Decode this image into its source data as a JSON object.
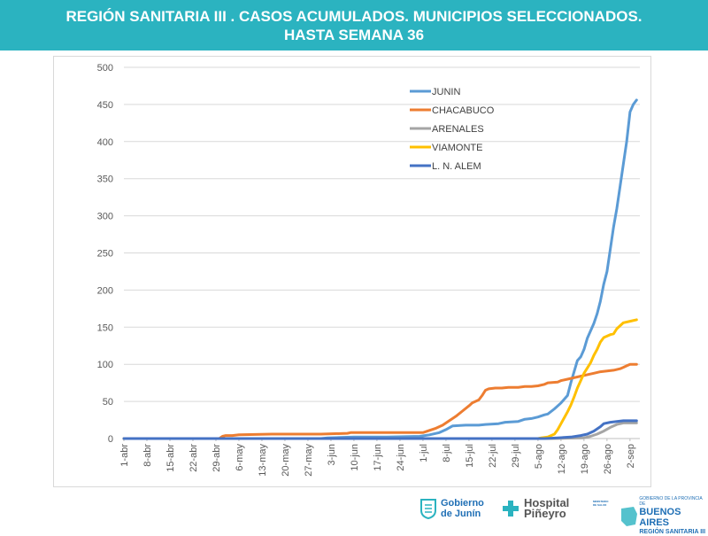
{
  "header": {
    "title_line1": "REGIÓN SANITARIA III . CASOS ACUMULADOS. MUNICIPIOS SELECCIONADOS.",
    "title_line2": "HASTA SEMANA 36"
  },
  "footer": {
    "logo_junin_line1": "Gobierno",
    "logo_junin_line2": "de Junín",
    "logo_hospital_line1": "Hospital",
    "logo_hospital_line2": "Piñeyro",
    "logo_ministerio": "MINISTERIO DE SALUD",
    "logo_gob_prov": "GOBIERNO DE LA PROVINCIA DE",
    "logo_ba": "BUENOS AIRES",
    "logo_region": "REGIÓN SANITARIA III"
  },
  "colors": {
    "header_bg": "#2bb3c0",
    "junin": "#5b9bd5",
    "chacabuco": "#ed7d31",
    "arenales": "#a5a5a5",
    "viamonte": "#ffc000",
    "alem": "#4472c4"
  },
  "chart_data": {
    "type": "line",
    "title": "",
    "xlabel": "",
    "ylabel": "",
    "ylim": [
      0,
      500
    ],
    "yticks": [
      0,
      50,
      100,
      150,
      200,
      250,
      300,
      350,
      400,
      450,
      500
    ],
    "x_tick_labels": [
      "1-abr",
      "8-abr",
      "15-abr",
      "22-abr",
      "29-abr",
      "6-may",
      "13-may",
      "20-may",
      "27-may",
      "3-jun",
      "10-jun",
      "17-jun",
      "24-jun",
      "1-jul",
      "8-jul",
      "15-jul",
      "22-jul",
      "29-jul",
      "5-ago",
      "12-ago",
      "19-ago",
      "26-ago",
      "2-sep"
    ],
    "x_tick_days": [
      0,
      7,
      14,
      21,
      28,
      35,
      42,
      49,
      56,
      63,
      70,
      77,
      84,
      91,
      98,
      105,
      112,
      119,
      126,
      133,
      140,
      147,
      154
    ],
    "x_range_days": [
      0,
      157
    ],
    "grid": "horizontal",
    "legend_position": "top-center",
    "series": [
      {
        "name": "JUNIN",
        "color_key": "junin",
        "points": [
          [
            0,
            0
          ],
          [
            60,
            0
          ],
          [
            62,
            1
          ],
          [
            70,
            2
          ],
          [
            80,
            2
          ],
          [
            90,
            3
          ],
          [
            93,
            5
          ],
          [
            96,
            8
          ],
          [
            98,
            12
          ],
          [
            100,
            17
          ],
          [
            104,
            18
          ],
          [
            108,
            18
          ],
          [
            110,
            19
          ],
          [
            114,
            20
          ],
          [
            116,
            22
          ],
          [
            120,
            23
          ],
          [
            122,
            26
          ],
          [
            124,
            27
          ],
          [
            126,
            29
          ],
          [
            128,
            32
          ],
          [
            129,
            33
          ],
          [
            131,
            40
          ],
          [
            133,
            48
          ],
          [
            135,
            58
          ],
          [
            136,
            75
          ],
          [
            137,
            90
          ],
          [
            138,
            105
          ],
          [
            139,
            110
          ],
          [
            140,
            120
          ],
          [
            141,
            135
          ],
          [
            142,
            145
          ],
          [
            143,
            155
          ],
          [
            144,
            168
          ],
          [
            145,
            185
          ],
          [
            146,
            208
          ],
          [
            147,
            225
          ],
          [
            148,
            255
          ],
          [
            149,
            285
          ],
          [
            150,
            310
          ],
          [
            151,
            340
          ],
          [
            152,
            370
          ],
          [
            153,
            400
          ],
          [
            154,
            440
          ],
          [
            155,
            450
          ],
          [
            156,
            456
          ]
        ]
      },
      {
        "name": "CHACABUCO",
        "color_key": "chacabuco",
        "points": [
          [
            0,
            0
          ],
          [
            29,
            0
          ],
          [
            30,
            3
          ],
          [
            31,
            4
          ],
          [
            33,
            4
          ],
          [
            35,
            5
          ],
          [
            45,
            6
          ],
          [
            60,
            6
          ],
          [
            68,
            7
          ],
          [
            69,
            8
          ],
          [
            80,
            8
          ],
          [
            91,
            8
          ],
          [
            93,
            11
          ],
          [
            95,
            14
          ],
          [
            97,
            18
          ],
          [
            99,
            24
          ],
          [
            101,
            30
          ],
          [
            103,
            37
          ],
          [
            105,
            44
          ],
          [
            106,
            48
          ],
          [
            108,
            52
          ],
          [
            109,
            58
          ],
          [
            110,
            65
          ],
          [
            111,
            67
          ],
          [
            113,
            68
          ],
          [
            115,
            68
          ],
          [
            117,
            69
          ],
          [
            120,
            69
          ],
          [
            122,
            70
          ],
          [
            124,
            70
          ],
          [
            126,
            71
          ],
          [
            128,
            73
          ],
          [
            129,
            75
          ],
          [
            132,
            76
          ],
          [
            133,
            78
          ],
          [
            135,
            80
          ],
          [
            137,
            82
          ],
          [
            139,
            84
          ],
          [
            141,
            86
          ],
          [
            143,
            88
          ],
          [
            145,
            90
          ],
          [
            147,
            91
          ],
          [
            149,
            92
          ],
          [
            151,
            94
          ],
          [
            152,
            96
          ],
          [
            153,
            98
          ],
          [
            154,
            100
          ],
          [
            156,
            100
          ]
        ]
      },
      {
        "name": "ARENALES",
        "color_key": "arenales",
        "points": [
          [
            0,
            0
          ],
          [
            130,
            0
          ],
          [
            140,
            1
          ],
          [
            142,
            3
          ],
          [
            144,
            6
          ],
          [
            146,
            10
          ],
          [
            148,
            15
          ],
          [
            150,
            19
          ],
          [
            152,
            21
          ],
          [
            156,
            21
          ]
        ]
      },
      {
        "name": "VIAMONTE",
        "color_key": "viamonte",
        "points": [
          [
            0,
            0
          ],
          [
            126,
            0
          ],
          [
            127,
            1
          ],
          [
            129,
            2
          ],
          [
            131,
            6
          ],
          [
            132,
            12
          ],
          [
            133,
            20
          ],
          [
            134,
            28
          ],
          [
            135,
            36
          ],
          [
            136,
            45
          ],
          [
            137,
            56
          ],
          [
            138,
            68
          ],
          [
            139,
            78
          ],
          [
            140,
            88
          ],
          [
            141,
            95
          ],
          [
            142,
            102
          ],
          [
            143,
            112
          ],
          [
            144,
            120
          ],
          [
            145,
            130
          ],
          [
            146,
            136
          ],
          [
            147,
            138
          ],
          [
            148,
            140
          ],
          [
            149,
            141
          ],
          [
            150,
            148
          ],
          [
            151,
            152
          ],
          [
            152,
            156
          ],
          [
            154,
            158
          ],
          [
            156,
            160
          ]
        ]
      },
      {
        "name": "L. N. ALEM",
        "color_key": "alem",
        "points": [
          [
            0,
            0
          ],
          [
            128,
            0
          ],
          [
            132,
            1
          ],
          [
            136,
            2
          ],
          [
            139,
            4
          ],
          [
            141,
            6
          ],
          [
            143,
            10
          ],
          [
            145,
            16
          ],
          [
            146,
            20
          ],
          [
            148,
            22
          ],
          [
            150,
            23
          ],
          [
            152,
            24
          ],
          [
            156,
            24
          ]
        ]
      }
    ]
  }
}
